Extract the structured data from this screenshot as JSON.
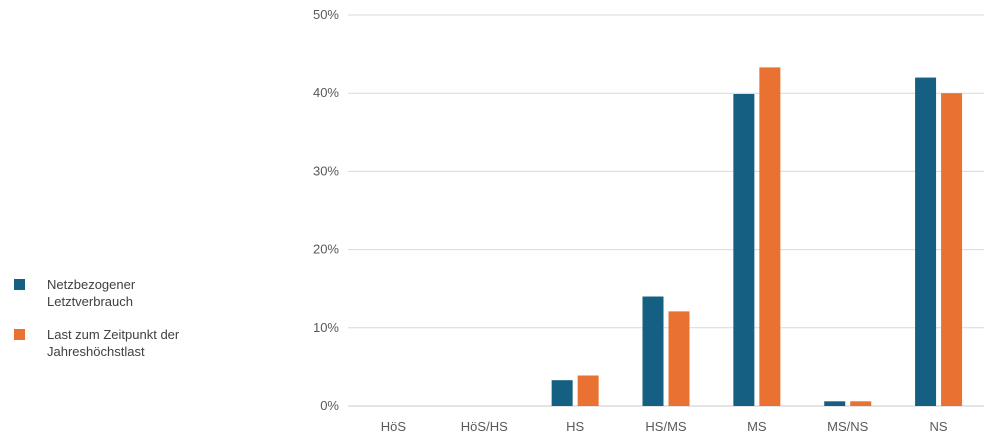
{
  "chart_data": {
    "type": "bar",
    "title": "",
    "xlabel": "",
    "ylabel": "",
    "categories": [
      "HöS",
      "HöS/HS",
      "HS",
      "HS/MS",
      "MS",
      "MS/NS",
      "NS"
    ],
    "ylim": [
      0,
      50
    ],
    "yticks": [
      0,
      10,
      20,
      30,
      40,
      50
    ],
    "ytick_labels": [
      "0%",
      "10%",
      "20%",
      "30%",
      "40%",
      "50%"
    ],
    "grid": "horizontal",
    "legend_position": "left",
    "series": [
      {
        "name": "Netzbezogener Letztverbrauch",
        "color": "#156082",
        "values": [
          0,
          0,
          3.3,
          14.0,
          39.9,
          0.6,
          42.0
        ]
      },
      {
        "name": "Last zum Zeitpunkt der Jahreshöchstlast",
        "color": "#E97132",
        "values": [
          0,
          0,
          3.9,
          12.1,
          43.3,
          0.6,
          40.0
        ]
      }
    ]
  }
}
